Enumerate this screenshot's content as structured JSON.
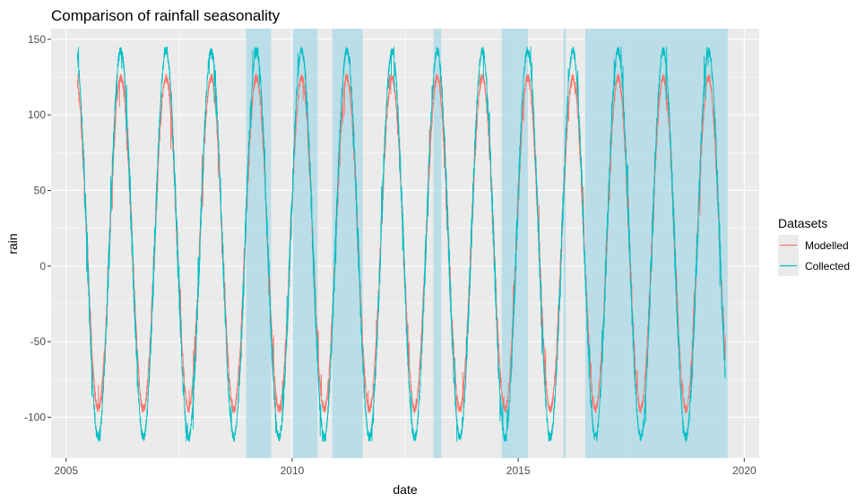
{
  "chart_data": {
    "type": "line",
    "title": "Comparison of rainfall seasonality",
    "xlabel": "date",
    "ylabel": "rain",
    "xlim": [
      "2004-09-01",
      "2020-05-01"
    ],
    "ylim": [
      -127,
      157
    ],
    "x_ticks": [
      "2005",
      "2010",
      "2015",
      "2020"
    ],
    "y_ticks": [
      -100,
      -50,
      0,
      50,
      100,
      150
    ],
    "grid": true,
    "panel_background": "#ebebeb",
    "legend": {
      "title": "Datasets",
      "placement": "right",
      "entries": [
        "Modelled",
        "Collected"
      ]
    },
    "series": [
      {
        "name": "Modelled",
        "color": "#F8766D",
        "start": "2005-04-01",
        "end": "2019-08-01",
        "pattern": "annual cycle",
        "peak_month": "March",
        "trough_month": "September",
        "max": 127,
        "min": -97
      },
      {
        "name": "Collected",
        "color": "#00BFC4",
        "start": "2005-04-01",
        "end": "2019-08-01",
        "pattern": "annual cycle",
        "peak_month": "March",
        "trough_month": "September",
        "max": 145,
        "min": -116
      }
    ],
    "shaded_periods": {
      "color": "#add8e6",
      "ranges": [
        [
          "2008-12-25",
          "2009-07-15"
        ],
        [
          "2010-01-05",
          "2010-07-25"
        ],
        [
          "2010-11-20",
          "2011-07-25"
        ],
        [
          "2013-02-15",
          "2013-04-20"
        ],
        [
          "2014-08-20",
          "2015-03-20"
        ],
        [
          "2016-01-01",
          "2016-01-20"
        ],
        [
          "2016-06-25",
          "2019-08-20"
        ]
      ]
    }
  }
}
